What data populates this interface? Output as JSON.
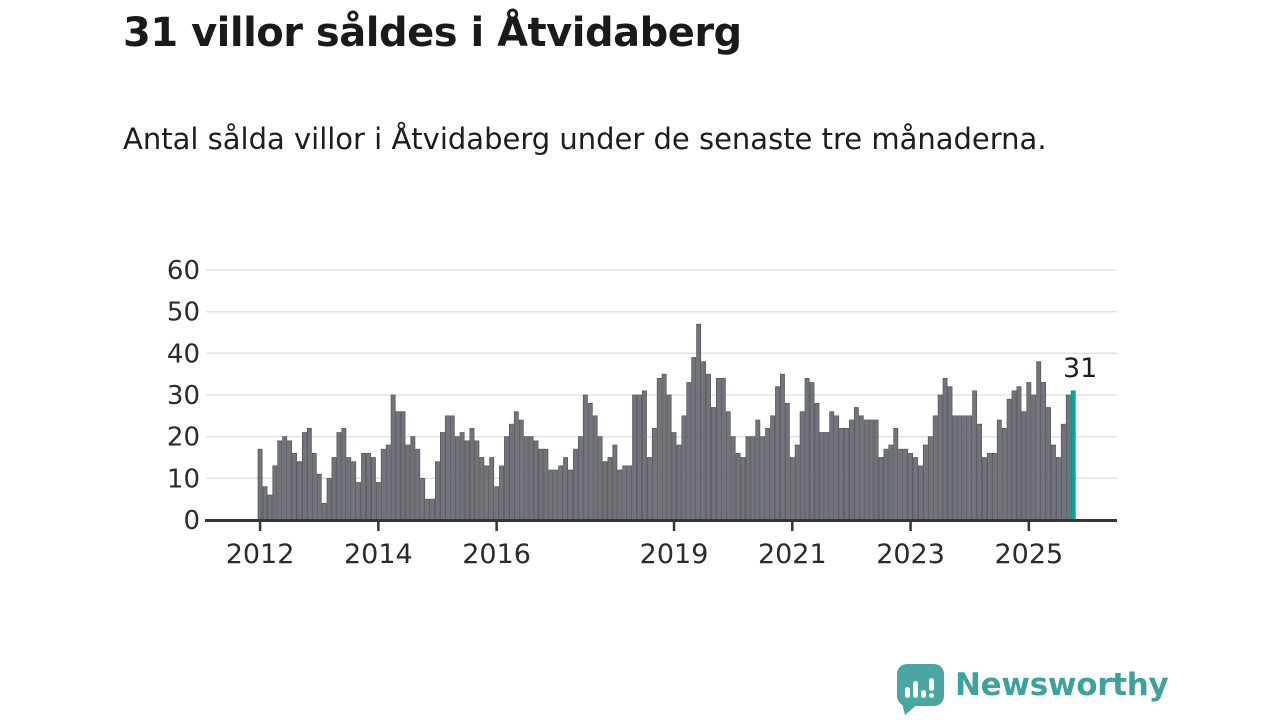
{
  "header": {
    "title": "31 villor såldes i Åtvidaberg",
    "subtitle": "Antal sålda villor i Åtvidaberg under de senaste tre månaderna."
  },
  "colors": {
    "bar": "#71747a",
    "bar_edge": "#54565b",
    "highlight": "#00a79f",
    "highlight_edge": "#008f88",
    "gridline": "#e3e3e3",
    "axis": "#33363b",
    "text": "#2b2b2b",
    "logo_teal": "#4aa6a1",
    "logo_text_teal": "#3da19c"
  },
  "chart_data": {
    "type": "bar",
    "title": "31 villor såldes i Åtvidaberg",
    "subtitle": "Antal sålda villor i Åtvidaberg under de senaste tre månaderna.",
    "xlabel": "",
    "ylabel": "",
    "ylim": [
      0,
      60
    ],
    "grid": "horizontal",
    "x_unit": "month",
    "x_start": "2012-01",
    "y_ticks": [
      0,
      10,
      20,
      30,
      40,
      50,
      60
    ],
    "x_ticks": [
      {
        "label": "2012",
        "month_index": 0
      },
      {
        "label": "2014",
        "month_index": 24
      },
      {
        "label": "2016",
        "month_index": 48
      },
      {
        "label": "2019",
        "month_index": 84
      },
      {
        "label": "2021",
        "month_index": 108
      },
      {
        "label": "2023",
        "month_index": 132
      },
      {
        "label": "2025",
        "month_index": 156
      }
    ],
    "values": [
      17,
      8,
      6,
      13,
      19,
      20,
      19,
      16,
      14,
      21,
      22,
      16,
      11,
      4,
      10,
      15,
      21,
      22,
      15,
      14,
      9,
      16,
      16,
      15,
      9,
      17,
      18,
      30,
      26,
      26,
      18,
      20,
      17,
      10,
      5,
      5,
      14,
      21,
      25,
      25,
      20,
      21,
      19,
      22,
      19,
      15,
      13,
      15,
      8,
      13,
      20,
      23,
      26,
      24,
      20,
      20,
      19,
      17,
      17,
      12,
      12,
      13,
      15,
      12,
      17,
      20,
      30,
      28,
      25,
      20,
      14,
      15,
      18,
      12,
      13,
      13,
      30,
      30,
      31,
      15,
      22,
      34,
      35,
      30,
      21,
      18,
      25,
      33,
      39,
      47,
      38,
      35,
      27,
      34,
      34,
      26,
      20,
      16,
      15,
      20,
      20,
      24,
      20,
      22,
      25,
      32,
      35,
      28,
      15,
      18,
      26,
      34,
      33,
      28,
      21,
      21,
      26,
      25,
      22,
      22,
      24,
      27,
      25,
      24,
      24,
      24,
      15,
      17,
      18,
      22,
      17,
      17,
      16,
      15,
      13,
      18,
      20,
      25,
      30,
      34,
      32,
      25,
      25,
      25,
      25,
      31,
      23,
      15,
      16,
      16,
      24,
      22,
      29,
      31,
      32,
      26,
      33,
      30,
      38,
      33,
      27,
      18,
      15,
      23,
      30,
      31
    ],
    "highlight_last": true,
    "annotation": "31",
    "legend": []
  },
  "logo": {
    "text": "Newsworthy",
    "icon": "speech-bubble-bar-chart-icon"
  }
}
